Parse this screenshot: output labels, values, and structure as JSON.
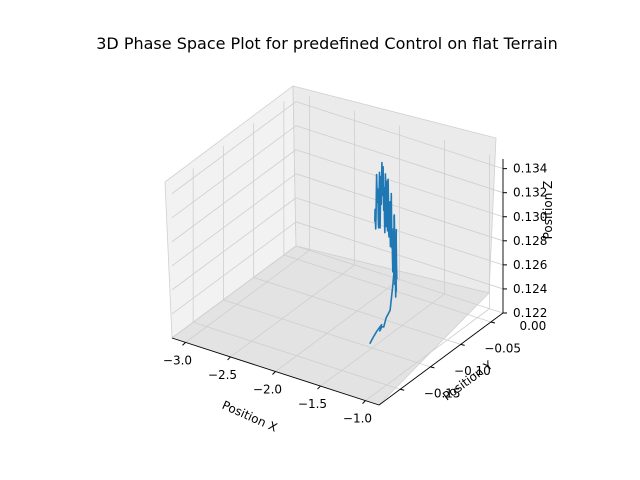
{
  "chart_data": {
    "type": "line",
    "projection": "3d",
    "title": "3D Phase Space Plot for predefined Control on flat Terrain",
    "xlabel": "Position X",
    "ylabel": "Position Y",
    "zlabel": "Position Z",
    "xlim": [
      -3.15,
      -0.85
    ],
    "ylim": [
      -0.185,
      0.02
    ],
    "zlim": [
      0.122,
      0.1348
    ],
    "x_ticks": [
      -3.0,
      -2.5,
      -2.0,
      -1.5,
      -1.0
    ],
    "x_tick_labels": [
      "−3.0",
      "−2.5",
      "−2.0",
      "−1.5",
      "−1.0"
    ],
    "y_ticks": [
      -0.15,
      -0.1,
      -0.05,
      0.0
    ],
    "y_tick_labels": [
      "−0.15",
      "−0.10",
      "−0.05",
      "0.00"
    ],
    "z_ticks": [
      0.122,
      0.124,
      0.126,
      0.128,
      0.13,
      0.132,
      0.134
    ],
    "z_tick_labels": [
      "0.122",
      "0.124",
      "0.126",
      "0.128",
      "0.130",
      "0.132",
      "0.134"
    ],
    "grid": true,
    "series": [
      {
        "color": "#1f77b4",
        "points": [
          [
            -1.12,
            -0.16,
            0.1255
          ],
          [
            -1.12,
            -0.155,
            0.1258
          ],
          [
            -1.11,
            -0.15,
            0.1262
          ],
          [
            -1.09,
            -0.145,
            0.1266
          ],
          [
            -1.09,
            -0.148,
            0.1262
          ],
          [
            -1.08,
            -0.146,
            0.1265
          ],
          [
            -1.1,
            -0.14,
            0.1262
          ],
          [
            -1.14,
            -0.13,
            0.1265
          ],
          [
            -1.15,
            -0.122,
            0.1268
          ],
          [
            -1.16,
            -0.116,
            0.1286
          ],
          [
            -1.17,
            -0.112,
            0.13
          ],
          [
            -1.18,
            -0.11,
            0.1298
          ],
          [
            -1.19,
            -0.108,
            0.1289
          ],
          [
            -1.2,
            -0.106,
            0.1295
          ],
          [
            -1.21,
            -0.104,
            0.1288
          ],
          [
            -1.22,
            -0.102,
            0.1305
          ],
          [
            -1.23,
            -0.1,
            0.1308
          ],
          [
            -1.24,
            -0.098,
            0.1292
          ],
          [
            -1.25,
            -0.096,
            0.1282
          ],
          [
            -1.26,
            -0.095,
            0.1295
          ],
          [
            -1.27,
            -0.094,
            0.1315
          ],
          [
            -1.28,
            -0.093,
            0.1303
          ],
          [
            -1.29,
            -0.091,
            0.132
          ],
          [
            -1.3,
            -0.09,
            0.129
          ],
          [
            -1.31,
            -0.088,
            0.1297
          ],
          [
            -1.32,
            -0.087,
            0.1275
          ],
          [
            -1.33,
            -0.085,
            0.1266
          ],
          [
            -1.34,
            -0.084,
            0.1279
          ],
          [
            -1.35,
            -0.082,
            0.1285
          ],
          [
            -1.36,
            -0.081,
            0.1268
          ],
          [
            -1.37,
            -0.08,
            0.1258
          ],
          [
            -1.38,
            -0.079,
            0.128
          ],
          [
            -1.39,
            -0.077,
            0.1305
          ],
          [
            -1.4,
            -0.076,
            0.1289
          ],
          [
            -1.41,
            -0.075,
            0.1274
          ],
          [
            -1.42,
            -0.074,
            0.1265
          ],
          [
            -1.43,
            -0.072,
            0.1274
          ],
          [
            -1.44,
            -0.071,
            0.1293
          ],
          [
            -1.45,
            -0.07,
            0.1305
          ],
          [
            -1.46,
            -0.069,
            0.132
          ],
          [
            -1.47,
            -0.068,
            0.1318
          ],
          [
            -1.48,
            -0.066,
            0.1283
          ],
          [
            -1.49,
            -0.065,
            0.1274
          ],
          [
            -1.5,
            -0.064,
            0.1295
          ],
          [
            -1.51,
            -0.063,
            0.1305
          ],
          [
            -1.52,
            -0.062,
            0.1283
          ],
          [
            -1.53,
            -0.061,
            0.1268
          ],
          [
            -1.54,
            -0.06,
            0.1278
          ],
          [
            -1.55,
            -0.059,
            0.13
          ],
          [
            -1.56,
            -0.058,
            0.1286
          ],
          [
            -1.57,
            -0.057,
            0.1306
          ],
          [
            -1.58,
            -0.056,
            0.133
          ],
          [
            -1.59,
            -0.055,
            0.1307
          ],
          [
            -1.6,
            -0.054,
            0.1294
          ],
          [
            -1.61,
            -0.053,
            0.1284
          ],
          [
            -1.62,
            -0.052,
            0.13
          ],
          [
            -1.63,
            -0.051,
            0.132
          ],
          [
            -1.64,
            -0.05,
            0.1315
          ],
          [
            -1.65,
            -0.049,
            0.1301
          ],
          [
            -1.66,
            -0.048,
            0.1289
          ],
          [
            -1.67,
            -0.047,
            0.1293
          ],
          [
            -1.68,
            -0.046,
            0.132
          ],
          [
            -1.69,
            -0.045,
            0.1335
          ],
          [
            -1.7,
            -0.044,
            0.1316
          ],
          [
            -1.71,
            -0.043,
            0.1291
          ],
          [
            -1.72,
            -0.042,
            0.1315
          ],
          [
            -1.73,
            -0.041,
            0.1331
          ],
          [
            -1.74,
            -0.04,
            0.13
          ],
          [
            -1.75,
            -0.039,
            0.1292
          ],
          [
            -1.76,
            -0.038,
            0.1301
          ],
          [
            -1.77,
            -0.037,
            0.1326
          ],
          [
            -1.78,
            -0.036,
            0.1334
          ],
          [
            -1.79,
            -0.035,
            0.1302
          ],
          [
            -1.8,
            -0.034,
            0.1284
          ],
          [
            -1.81,
            -0.033,
            0.1295
          ],
          [
            -1.82,
            -0.032,
            0.132
          ],
          [
            -1.83,
            -0.031,
            0.1311
          ],
          [
            -1.84,
            -0.03,
            0.13
          ],
          [
            -1.85,
            -0.029,
            0.1318
          ],
          [
            -1.86,
            -0.028,
            0.1335
          ],
          [
            -1.87,
            -0.027,
            0.1322
          ],
          [
            -1.88,
            -0.026,
            0.131
          ],
          [
            -1.89,
            -0.025,
            0.1327
          ],
          [
            -1.9,
            -0.024,
            0.1336
          ],
          [
            -1.91,
            -0.023,
            0.1315
          ],
          [
            -1.92,
            -0.022,
            0.13
          ],
          [
            -1.93,
            -0.021,
            0.1317
          ],
          [
            -1.94,
            -0.02,
            0.1322
          ],
          [
            -1.95,
            -0.019,
            0.1296
          ],
          [
            -1.96,
            -0.018,
            0.1278
          ],
          [
            -1.97,
            -0.017,
            0.1296
          ],
          [
            -1.98,
            -0.016,
            0.1323
          ],
          [
            -1.99,
            -0.015,
            0.131
          ],
          [
            -2.0,
            -0.014,
            0.1292
          ],
          [
            -2.01,
            -0.013,
            0.1275
          ],
          [
            -2.02,
            -0.012,
            0.1281
          ],
          [
            -2.03,
            -0.011,
            0.13
          ],
          [
            -2.04,
            -0.01,
            0.1298
          ],
          [
            -2.05,
            -0.009,
            0.1305
          ],
          [
            -2.06,
            -0.008,
            0.1293
          ],
          [
            -2.07,
            -0.007,
            0.1306
          ],
          [
            -2.08,
            -0.006,
            0.1315
          ],
          [
            -2.09,
            -0.005,
            0.1296
          ],
          [
            -2.1,
            -0.004,
            0.1278
          ],
          [
            -2.11,
            -0.003,
            0.1268
          ],
          [
            -2.12,
            -0.002,
            0.1274
          ],
          [
            -2.13,
            -0.001,
            0.1283
          ],
          [
            -2.14,
            0.0,
            0.1272
          ]
        ]
      }
    ]
  }
}
